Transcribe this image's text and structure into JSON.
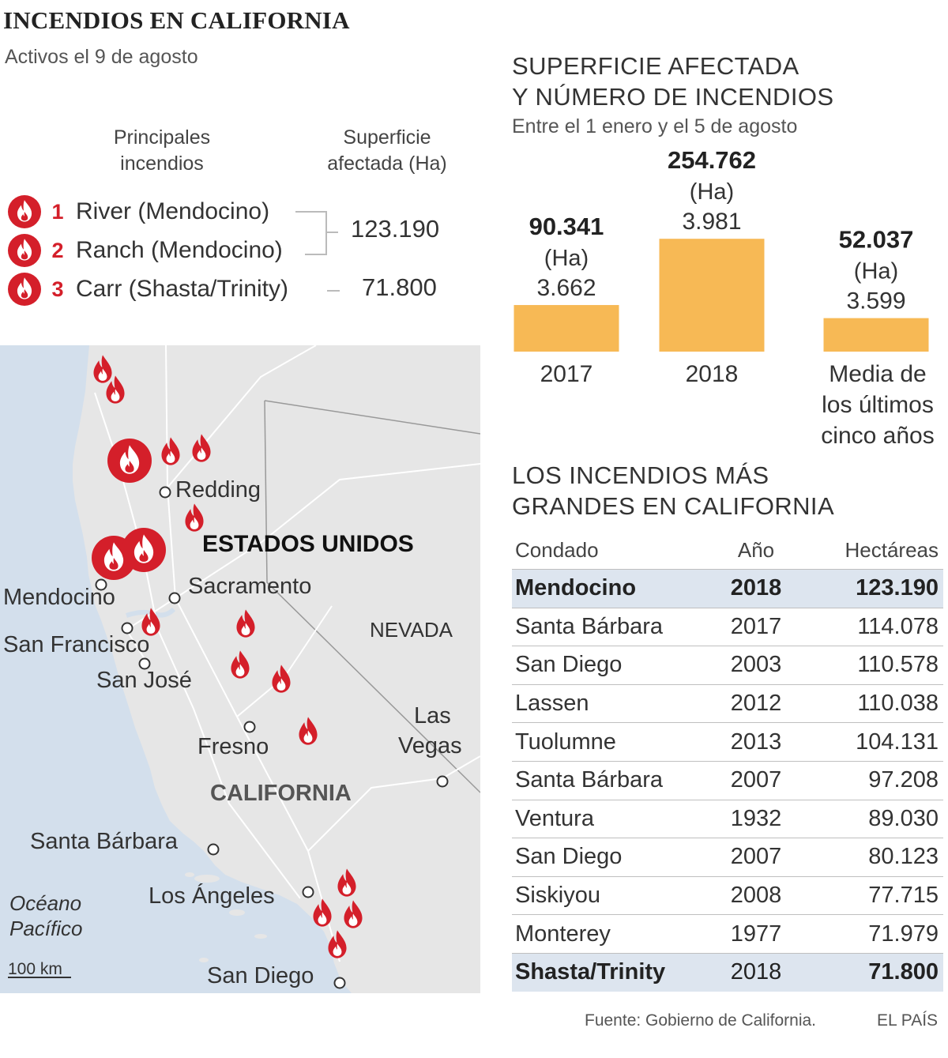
{
  "title": "INCENDIOS EN CALIFORNIA",
  "subtitle": "Activos el 9 de agosto",
  "legend": {
    "col1_header": [
      "Principales",
      "incendios"
    ],
    "col2_header": [
      "Superficie",
      "afectada (Ha)"
    ],
    "fires": [
      {
        "num": "1",
        "name": "River (Mendocino)"
      },
      {
        "num": "2",
        "name": "Ranch (Mendocino)"
      },
      {
        "num": "3",
        "name": "Carr (Shasta/Trinity)"
      }
    ],
    "group_value": "123.190",
    "carr_value": "71.800"
  },
  "map": {
    "labels": {
      "redding": "Redding",
      "estados_unidos": "ESTADOS UNIDOS",
      "mendocino": "Mendocino",
      "sacramento": "Sacramento",
      "san_francisco": "San Francisco",
      "nevada": "NEVADA",
      "san_jose": "San José",
      "las": "Las",
      "vegas": "Vegas",
      "fresno": "Fresno",
      "california": "CALIFORNIA",
      "santa_barbara": "Santa Bárbara",
      "los_angeles": "Los Ángeles",
      "oceano": "Océano",
      "pacifico": "Pacífico",
      "scale": "100 km",
      "san_diego": "San Diego"
    },
    "colors": {
      "land": "#e6e6e6",
      "ocean": "#d3dfec",
      "fire": "#d41f2a"
    }
  },
  "chart_data": {
    "type": "bar",
    "title": "SUPERFICIE AFECTADA Y NÚMERO DE INCENDIOS",
    "title_lines": [
      "SUPERFICIE AFECTADA",
      "Y NÚMERO DE INCENDIOS"
    ],
    "subtitle": "Entre el 1 enero y el 5 de agosto",
    "categories": [
      "2017",
      "2018",
      "Media de los últimos cinco años"
    ],
    "category_lines": [
      [
        "2017"
      ],
      [
        "2018"
      ],
      [
        "Media de",
        "los últimos",
        "cinco años"
      ]
    ],
    "series": [
      {
        "name": "Superficie afectada (Ha)",
        "values": [
          90341,
          254762,
          52037
        ],
        "labels": [
          "90.341",
          "254.762",
          "52.037"
        ],
        "unit": "(Ha)"
      },
      {
        "name": "Número de incendios",
        "values": [
          3662,
          3981,
          3599
        ],
        "labels": [
          "3.662",
          "3.981",
          "3.599"
        ]
      }
    ],
    "bar_color": "#f7b955"
  },
  "table": {
    "title_lines": [
      "LOS INCENDIOS MÁS",
      "GRANDES EN CALIFORNIA"
    ],
    "headers": [
      "Condado",
      "Año",
      "Hectáreas"
    ],
    "rows": [
      {
        "county": "Mendocino",
        "year": "2018",
        "ha": "123.190",
        "highlight": true
      },
      {
        "county": "Santa Bárbara",
        "year": "2017",
        "ha": "114.078",
        "highlight": false
      },
      {
        "county": "San Diego",
        "year": "2003",
        "ha": "110.578",
        "highlight": false
      },
      {
        "county": "Lassen",
        "year": "2012",
        "ha": "110.038",
        "highlight": false
      },
      {
        "county": "Tuolumne",
        "year": "2013",
        "ha": "104.131",
        "highlight": false
      },
      {
        "county": "Santa Bárbara",
        "year": "2007",
        "ha": "97.208",
        "highlight": false
      },
      {
        "county": "Ventura",
        "year": "1932",
        "ha": "89.030",
        "highlight": false
      },
      {
        "county": "San Diego",
        "year": "2007",
        "ha": "80.123",
        "highlight": false
      },
      {
        "county": "Siskiyou",
        "year": "2008",
        "ha": "77.715",
        "highlight": false
      },
      {
        "county": "Monterey",
        "year": "1977",
        "ha": "71.979",
        "highlight": false
      },
      {
        "county": "Shasta/Trinity",
        "year": "2018",
        "ha": "71.800",
        "highlight": true
      }
    ]
  },
  "footer": {
    "source": "Fuente: Gobierno de California.",
    "brand": "EL PAÍS"
  }
}
